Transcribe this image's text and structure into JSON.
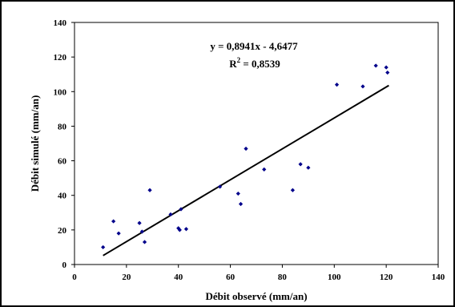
{
  "chart_data": {
    "type": "scatter",
    "title": "",
    "xlabel": "Débit observé (mm/an)",
    "ylabel": "Débit simulé (mm/an)",
    "xlim": [
      0,
      140
    ],
    "ylim": [
      0,
      140
    ],
    "x_ticks": [
      "0",
      "20",
      "40",
      "60",
      "80",
      "100",
      "120",
      "140"
    ],
    "y_ticks": [
      "0",
      "20",
      "40",
      "60",
      "80",
      "100",
      "120",
      "140"
    ],
    "grid": false,
    "legend": "none",
    "marker_color": "#00008B",
    "line_color": "#000000",
    "series": [
      {
        "points": [
          {
            "x": 11,
            "y": 10
          },
          {
            "x": 15,
            "y": 25
          },
          {
            "x": 17,
            "y": 18
          },
          {
            "x": 25,
            "y": 24
          },
          {
            "x": 26,
            "y": 19
          },
          {
            "x": 27,
            "y": 13
          },
          {
            "x": 29,
            "y": 43
          },
          {
            "x": 37,
            "y": 29
          },
          {
            "x": 40,
            "y": 21
          },
          {
            "x": 40.5,
            "y": 20
          },
          {
            "x": 41,
            "y": 32
          },
          {
            "x": 43,
            "y": 20.5
          },
          {
            "x": 56,
            "y": 45
          },
          {
            "x": 63,
            "y": 41
          },
          {
            "x": 64,
            "y": 35
          },
          {
            "x": 66,
            "y": 67
          },
          {
            "x": 73,
            "y": 55
          },
          {
            "x": 84,
            "y": 43
          },
          {
            "x": 87,
            "y": 58
          },
          {
            "x": 90,
            "y": 56
          },
          {
            "x": 101,
            "y": 104
          },
          {
            "x": 111,
            "y": 103
          },
          {
            "x": 116,
            "y": 115
          },
          {
            "x": 120,
            "y": 114
          },
          {
            "x": 120.5,
            "y": 111
          }
        ]
      }
    ],
    "trendline": {
      "slope": 0.8941,
      "intercept": -4.6477,
      "x_range": [
        11,
        121
      ]
    },
    "annotations": {
      "equation": "y = 0,8941x - 4,6477",
      "r2_prefix": "R",
      "r2_sup": "2",
      "r2_suffix": " = 0,8539"
    }
  }
}
